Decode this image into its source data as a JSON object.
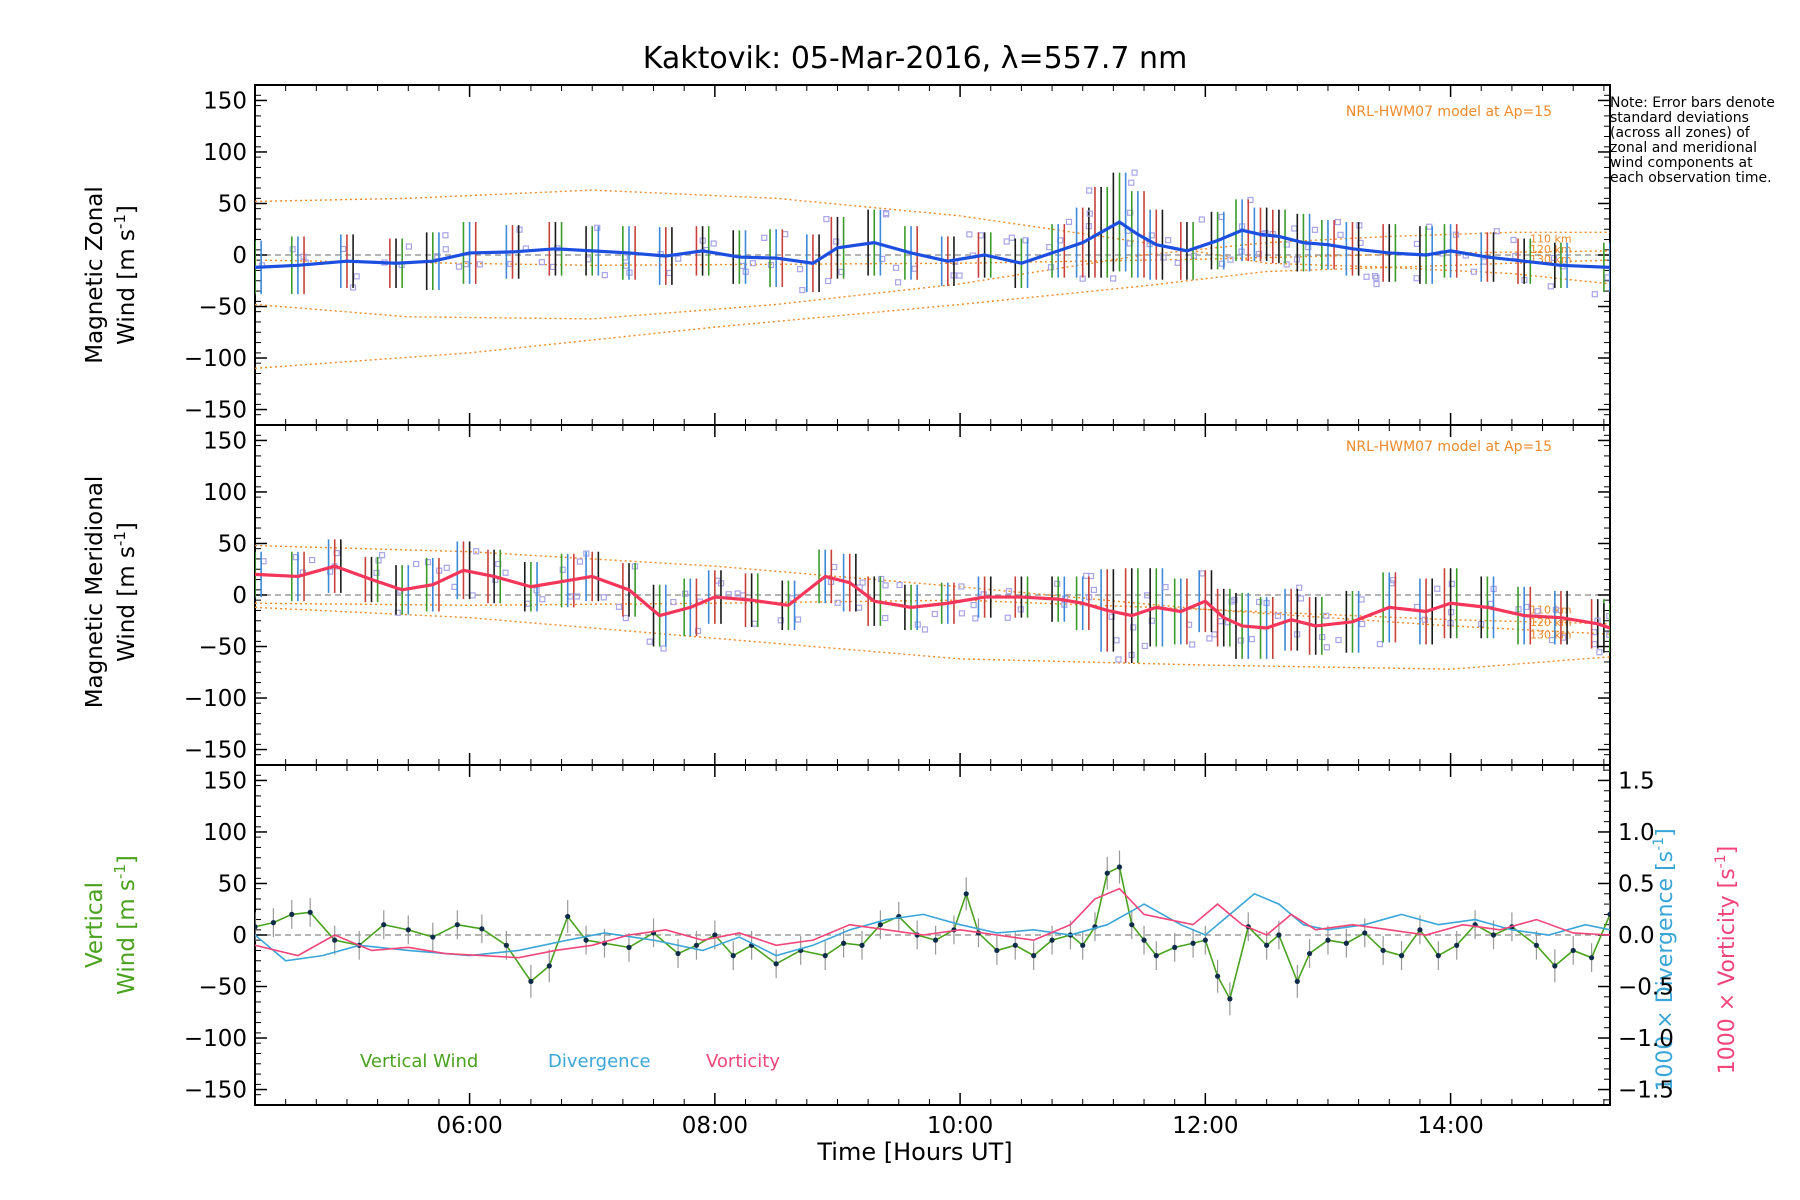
{
  "chart_data": {
    "type": "line",
    "title": "Kaktovik: 05-Mar-2016, λ=557.7 nm",
    "xlabel": "Time [Hours UT]",
    "x_unit": "hours UT",
    "xlim": [
      4.25,
      15.3
    ],
    "x_ticks": [
      6,
      8,
      10,
      12,
      14
    ],
    "x_tick_labels": [
      "06:00",
      "08:00",
      "10:00",
      "12:00",
      "14:00"
    ],
    "note": "Note: Error bars denote standard deviations (across all zones) of zonal and meridional wind components at each observation time.",
    "panels": [
      {
        "name": "zonal",
        "ylabel_line1": "Magnetic Zonal",
        "ylabel_line2": "Wind [m s",
        "ylabel_sup": "-1",
        "ylabel_close": "]",
        "ylim": [
          -165,
          165
        ],
        "y_ticks": [
          -150,
          -100,
          -50,
          0,
          50,
          100,
          150
        ],
        "model_label": "NRL-HWM07 model at Ap=15",
        "model_alt_labels": [
          "110 km",
          "120 km",
          "130 km"
        ],
        "series": [
          {
            "color": "#1c4fe0",
            "x": [
              4.25,
              4.6,
              5.0,
              5.4,
              5.7,
              6.0,
              6.35,
              6.7,
              7.0,
              7.3,
              7.6,
              7.9,
              8.2,
              8.5,
              8.8,
              9.0,
              9.3,
              9.6,
              9.9,
              10.2,
              10.5,
              10.8,
              11.0,
              11.15,
              11.3,
              11.45,
              11.6,
              11.85,
              12.1,
              12.3,
              12.45,
              12.6,
              12.8,
              13.0,
              13.2,
              13.5,
              13.8,
              14.0,
              14.3,
              14.6,
              14.9,
              15.3
            ],
            "y": [
              -12,
              -10,
              -6,
              -8,
              -6,
              2,
              3,
              6,
              4,
              2,
              -1,
              4,
              -2,
              -3,
              -8,
              7,
              12,
              2,
              -6,
              0,
              -8,
              4,
              12,
              22,
              32,
              20,
              10,
              4,
              14,
              24,
              20,
              18,
              12,
              10,
              6,
              2,
              0,
              4,
              -2,
              -6,
              -10,
              -12
            ],
            "err": [
              26,
              28,
              26,
              24,
              28,
              30,
              26,
              26,
              24,
              26,
              28,
              24,
              26,
              28,
              28,
              30,
              32,
              26,
              24,
              22,
              24,
              26,
              34,
              44,
              48,
              42,
              34,
              28,
              28,
              30,
              26,
              26,
              28,
              24,
              26,
              28,
              28,
              26,
              24,
              22,
              22,
              24
            ]
          }
        ],
        "model_curves": [
          {
            "x": [
              4.25,
              5.5,
              7.0,
              8.5,
              10.0,
              11.5,
              12.5,
              13.5,
              14.5,
              15.3
            ],
            "y": [
              52,
              55,
              63,
              55,
              38,
              12,
              -8,
              -12,
              -8,
              -5
            ]
          },
          {
            "x": [
              4.25,
              5.5,
              7.0,
              8.5,
              10.0,
              11.5,
              12.5,
              13.5,
              14.5,
              15.3
            ],
            "y": [
              -48,
              -60,
              -62,
              -48,
              -28,
              0,
              12,
              18,
              22,
              22
            ]
          },
          {
            "x": [
              4.25,
              6.0,
              8.0,
              10.0,
              11.5,
              12.5,
              13.5,
              14.5,
              15.3
            ],
            "y": [
              -110,
              -95,
              -70,
              -48,
              -30,
              -16,
              -12,
              -18,
              -28
            ]
          },
          {
            "x": [
              4.25,
              7.0,
              10.0,
              12.0,
              14.0,
              15.3
            ],
            "y": [
              -5,
              -10,
              -8,
              -4,
              2,
              4
            ]
          }
        ]
      },
      {
        "name": "meridional",
        "ylabel_line1": "Magnetic Meridional",
        "ylabel_line2": "Wind [m s",
        "ylabel_sup": "-1",
        "ylabel_close": "]",
        "ylim": [
          -165,
          165
        ],
        "y_ticks": [
          -150,
          -100,
          -50,
          0,
          50,
          100,
          150
        ],
        "model_label": "NRL-HWM07 model at Ap=15",
        "model_alt_labels": [
          "110 km",
          "120 km",
          "130 km"
        ],
        "series": [
          {
            "color": "#f5355a",
            "x": [
              4.25,
              4.6,
              4.9,
              5.2,
              5.45,
              5.7,
              5.95,
              6.2,
              6.5,
              6.8,
              7.0,
              7.3,
              7.55,
              7.8,
              8.0,
              8.3,
              8.6,
              8.9,
              9.1,
              9.3,
              9.6,
              9.9,
              10.2,
              10.5,
              10.8,
              11.0,
              11.2,
              11.4,
              11.6,
              11.8,
              12.0,
              12.15,
              12.3,
              12.5,
              12.7,
              12.9,
              13.2,
              13.5,
              13.8,
              14.0,
              14.3,
              14.6,
              14.9,
              15.2,
              15.3
            ],
            "y": [
              20,
              18,
              28,
              15,
              5,
              10,
              24,
              18,
              8,
              14,
              18,
              5,
              -20,
              -12,
              -2,
              -5,
              -10,
              18,
              12,
              -6,
              -12,
              -8,
              -2,
              -2,
              -4,
              -8,
              -15,
              -20,
              -12,
              -16,
              -6,
              -22,
              -30,
              -32,
              -24,
              -30,
              -26,
              -12,
              -16,
              -8,
              -12,
              -20,
              -22,
              -28,
              -32
            ],
            "err": [
              22,
              24,
              26,
              22,
              24,
              26,
              28,
              26,
              24,
              26,
              24,
              26,
              30,
              28,
              26,
              26,
              24,
              26,
              28,
              24,
              22,
              20,
              20,
              20,
              22,
              26,
              40,
              46,
              38,
              32,
              30,
              28,
              32,
              30,
              30,
              28,
              30,
              34,
              32,
              34,
              30,
              28,
              26,
              24,
              24
            ]
          }
        ],
        "model_curves": [
          {
            "x": [
              4.25,
              6.0,
              8.0,
              10.0,
              12.0,
              14.0,
              15.3
            ],
            "y": [
              48,
              42,
              28,
              8,
              -14,
              -30,
              -38
            ]
          },
          {
            "x": [
              4.25,
              6.0,
              8.0,
              10.0,
              12.0,
              14.0,
              15.3
            ],
            "y": [
              -12,
              -22,
              -42,
              -62,
              -68,
              -72,
              -60
            ]
          },
          {
            "x": [
              4.25,
              6.0,
              8.0,
              10.0,
              12.0,
              14.0,
              15.3
            ],
            "y": [
              -8,
              -10,
              -8,
              -5,
              -14,
              -24,
              -28
            ]
          }
        ]
      },
      {
        "name": "vertical",
        "ylabel_line1": "Vertical",
        "ylabel_line2": "Wind [m s",
        "ylabel_sup": "-1",
        "ylabel_close": "]",
        "ylim": [
          -165,
          165
        ],
        "y_ticks": [
          -150,
          -100,
          -50,
          0,
          50,
          100,
          150
        ],
        "y2_lim": [
          -1.65,
          1.65
        ],
        "y2_ticks": [
          -1.5,
          -1.0,
          -0.5,
          0.0,
          0.5,
          1.0,
          1.5
        ],
        "y2_tick_labels": [
          "-1.5",
          "-1.0",
          "-0.5",
          "0.0",
          "0.5",
          "1.0",
          "1.5"
        ],
        "y2_label_div": "1000 × Divergence [s",
        "y2_label_vor": "1000 × Vorticity [s",
        "y2_label_sup": "-1",
        "y2_label_close": "]",
        "legend": [
          "Vertical Wind",
          "Divergence",
          "Vorticity"
        ],
        "series": [
          {
            "name": "Vertical Wind",
            "color": "#4aa21e",
            "x": [
              4.25,
              4.4,
              4.55,
              4.7,
              4.9,
              5.1,
              5.3,
              5.5,
              5.7,
              5.9,
              6.1,
              6.3,
              6.5,
              6.65,
              6.8,
              6.95,
              7.1,
              7.3,
              7.5,
              7.7,
              7.85,
              8.0,
              8.15,
              8.3,
              8.5,
              8.7,
              8.9,
              9.05,
              9.2,
              9.35,
              9.5,
              9.65,
              9.8,
              9.95,
              10.05,
              10.15,
              10.3,
              10.45,
              10.6,
              10.75,
              10.9,
              11.0,
              11.1,
              11.2,
              11.3,
              11.4,
              11.5,
              11.6,
              11.75,
              11.9,
              12.0,
              12.1,
              12.2,
              12.35,
              12.5,
              12.6,
              12.75,
              12.85,
              13.0,
              13.15,
              13.3,
              13.45,
              13.6,
              13.75,
              13.9,
              14.05,
              14.2,
              14.35,
              14.5,
              14.7,
              14.85,
              15.0,
              15.15,
              15.3
            ],
            "y": [
              8,
              12,
              20,
              22,
              -5,
              -10,
              10,
              5,
              -2,
              10,
              6,
              -10,
              -45,
              -30,
              18,
              -5,
              -8,
              -12,
              2,
              -18,
              -10,
              0,
              -20,
              -10,
              -28,
              -15,
              -20,
              -8,
              -10,
              10,
              18,
              0,
              -5,
              5,
              40,
              2,
              -15,
              -10,
              -20,
              -5,
              0,
              -10,
              8,
              60,
              66,
              10,
              -5,
              -20,
              -12,
              -8,
              -5,
              -40,
              -62,
              8,
              -10,
              0,
              -45,
              -18,
              -5,
              -8,
              2,
              -15,
              -20,
              5,
              -20,
              -10,
              10,
              0,
              8,
              -10,
              -30,
              -15,
              -22,
              20
            ],
            "err": [
              14,
              14,
              14,
              14,
              14,
              14,
              14,
              14,
              14,
              14,
              14,
              14,
              16,
              16,
              16,
              14,
              14,
              14,
              14,
              14,
              14,
              14,
              14,
              14,
              14,
              14,
              14,
              14,
              14,
              14,
              14,
              14,
              14,
              14,
              16,
              14,
              14,
              14,
              14,
              14,
              14,
              14,
              14,
              16,
              16,
              14,
              14,
              14,
              14,
              14,
              14,
              16,
              16,
              14,
              14,
              14,
              16,
              14,
              14,
              14,
              14,
              14,
              14,
              14,
              14,
              14,
              14,
              14,
              14,
              14,
              16,
              14,
              14,
              14
            ]
          },
          {
            "name": "Divergence",
            "color": "#3aa6d8",
            "axis": "y2",
            "x": [
              4.25,
              4.5,
              4.8,
              5.1,
              5.5,
              6.0,
              6.4,
              6.8,
              7.1,
              7.5,
              7.9,
              8.2,
              8.5,
              8.8,
              9.1,
              9.4,
              9.7,
              10.0,
              10.3,
              10.6,
              10.9,
              11.2,
              11.5,
              11.8,
              12.0,
              12.2,
              12.4,
              12.6,
              12.8,
              13.0,
              13.3,
              13.6,
              13.9,
              14.2,
              14.5,
              14.8,
              15.1,
              15.3
            ],
            "y": [
              0.0,
              -0.25,
              -0.2,
              -0.1,
              -0.15,
              -0.2,
              -0.15,
              -0.05,
              0.02,
              -0.05,
              -0.15,
              -0.02,
              -0.2,
              -0.1,
              0.05,
              0.15,
              0.2,
              0.1,
              0.02,
              0.05,
              0.0,
              0.1,
              0.3,
              0.1,
              0.0,
              0.2,
              0.4,
              0.3,
              0.1,
              0.05,
              0.1,
              0.2,
              0.1,
              0.15,
              0.05,
              0.0,
              0.1,
              0.05
            ],
            "err": []
          },
          {
            "name": "Vorticity",
            "color": "#f2457a",
            "axis": "y2",
            "x": [
              4.25,
              4.6,
              4.9,
              5.2,
              5.5,
              5.8,
              6.1,
              6.4,
              6.7,
              7.0,
              7.3,
              7.6,
              7.9,
              8.2,
              8.5,
              8.8,
              9.1,
              9.4,
              9.7,
              10.0,
              10.3,
              10.6,
              10.9,
              11.1,
              11.3,
              11.5,
              11.7,
              11.9,
              12.1,
              12.3,
              12.5,
              12.7,
              12.9,
              13.2,
              13.5,
              13.8,
              14.1,
              14.4,
              14.7,
              15.0,
              15.3
            ],
            "y": [
              -0.1,
              -0.2,
              0.0,
              -0.15,
              -0.12,
              -0.18,
              -0.2,
              -0.22,
              -0.15,
              -0.1,
              0.0,
              0.05,
              -0.05,
              0.02,
              -0.1,
              -0.05,
              0.1,
              0.05,
              0.0,
              0.05,
              0.0,
              -0.05,
              0.1,
              0.35,
              0.45,
              0.2,
              0.15,
              0.1,
              0.3,
              0.1,
              0.0,
              0.2,
              0.05,
              0.1,
              0.05,
              0.0,
              0.1,
              0.05,
              0.15,
              0.02,
              0.0
            ],
            "err": []
          }
        ]
      }
    ]
  },
  "colors": {
    "scatter": "#a8a4e8",
    "model": "#f08a2a",
    "error_dark": "#1a1a1a",
    "error_green": "#3a9a2a",
    "error_blue": "#3c8ad8",
    "error_red": "#c8403a",
    "zero_line": "#888888"
  }
}
